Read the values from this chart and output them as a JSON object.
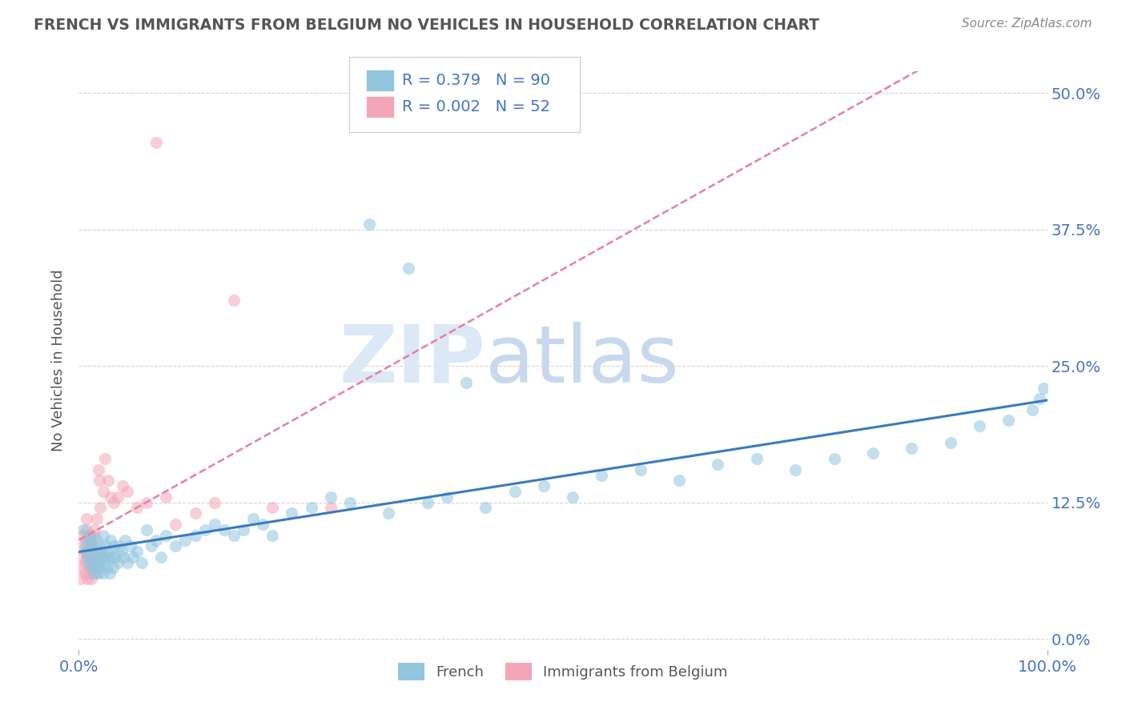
{
  "title": "FRENCH VS IMMIGRANTS FROM BELGIUM NO VEHICLES IN HOUSEHOLD CORRELATION CHART",
  "source": "Source: ZipAtlas.com",
  "ylabel": "No Vehicles in Household",
  "y_tick_values": [
    0.0,
    0.125,
    0.25,
    0.375,
    0.5
  ],
  "y_tick_labels": [
    "0.0%",
    "12.5%",
    "25.0%",
    "37.5%",
    "50.0%"
  ],
  "xlim": [
    0.0,
    1.0
  ],
  "ylim": [
    -0.01,
    0.52
  ],
  "french_R": 0.379,
  "french_N": 90,
  "belgium_R": 0.002,
  "belgium_N": 52,
  "french_color": "#92c5de",
  "belgium_color": "#f4a6b8",
  "french_line_color": "#3a7abf",
  "belgium_line_color": "#e87fa0",
  "grid_color": "#cccccc",
  "title_color": "#555555",
  "axis_label_color": "#555555",
  "tick_color": "#4472c4",
  "watermark_zip_color": "#dce8f5",
  "watermark_atlas_color": "#c8d9ee",
  "legend_text_color": "#4472c4",
  "french_x": [
    0.005,
    0.007,
    0.008,
    0.009,
    0.01,
    0.01,
    0.012,
    0.013,
    0.014,
    0.015,
    0.015,
    0.016,
    0.017,
    0.018,
    0.019,
    0.02,
    0.02,
    0.021,
    0.022,
    0.023,
    0.024,
    0.025,
    0.025,
    0.026,
    0.027,
    0.028,
    0.029,
    0.03,
    0.031,
    0.032,
    0.033,
    0.034,
    0.035,
    0.036,
    0.038,
    0.04,
    0.042,
    0.044,
    0.046,
    0.048,
    0.05,
    0.053,
    0.056,
    0.06,
    0.065,
    0.07,
    0.075,
    0.08,
    0.085,
    0.09,
    0.1,
    0.11,
    0.12,
    0.13,
    0.14,
    0.15,
    0.16,
    0.17,
    0.18,
    0.19,
    0.2,
    0.22,
    0.24,
    0.26,
    0.28,
    0.3,
    0.32,
    0.34,
    0.36,
    0.38,
    0.4,
    0.42,
    0.45,
    0.48,
    0.51,
    0.54,
    0.58,
    0.62,
    0.66,
    0.7,
    0.74,
    0.78,
    0.82,
    0.86,
    0.9,
    0.93,
    0.96,
    0.985,
    0.992,
    0.996
  ],
  "french_y": [
    0.1,
    0.085,
    0.08,
    0.075,
    0.07,
    0.09,
    0.095,
    0.065,
    0.085,
    0.06,
    0.075,
    0.08,
    0.07,
    0.065,
    0.09,
    0.06,
    0.07,
    0.085,
    0.065,
    0.08,
    0.075,
    0.06,
    0.095,
    0.075,
    0.07,
    0.085,
    0.065,
    0.075,
    0.08,
    0.06,
    0.09,
    0.075,
    0.065,
    0.085,
    0.075,
    0.07,
    0.085,
    0.08,
    0.075,
    0.09,
    0.07,
    0.085,
    0.075,
    0.08,
    0.07,
    0.1,
    0.085,
    0.09,
    0.075,
    0.095,
    0.085,
    0.09,
    0.095,
    0.1,
    0.105,
    0.1,
    0.095,
    0.1,
    0.11,
    0.105,
    0.095,
    0.115,
    0.12,
    0.13,
    0.125,
    0.38,
    0.115,
    0.34,
    0.125,
    0.13,
    0.235,
    0.12,
    0.135,
    0.14,
    0.13,
    0.15,
    0.155,
    0.145,
    0.16,
    0.165,
    0.155,
    0.165,
    0.17,
    0.175,
    0.18,
    0.195,
    0.2,
    0.21,
    0.22,
    0.23
  ],
  "belgium_x": [
    0.002,
    0.003,
    0.004,
    0.005,
    0.005,
    0.006,
    0.006,
    0.007,
    0.007,
    0.008,
    0.008,
    0.009,
    0.009,
    0.01,
    0.01,
    0.01,
    0.011,
    0.011,
    0.012,
    0.012,
    0.013,
    0.013,
    0.014,
    0.014,
    0.015,
    0.015,
    0.016,
    0.017,
    0.018,
    0.019,
    0.02,
    0.021,
    0.022,
    0.023,
    0.025,
    0.027,
    0.03,
    0.033,
    0.036,
    0.04,
    0.045,
    0.05,
    0.06,
    0.07,
    0.08,
    0.09,
    0.1,
    0.12,
    0.14,
    0.16,
    0.2,
    0.26
  ],
  "belgium_y": [
    0.055,
    0.065,
    0.075,
    0.085,
    0.095,
    0.06,
    0.07,
    0.08,
    0.09,
    0.1,
    0.11,
    0.055,
    0.075,
    0.065,
    0.085,
    0.095,
    0.06,
    0.075,
    0.07,
    0.085,
    0.055,
    0.09,
    0.065,
    0.08,
    0.095,
    0.07,
    0.1,
    0.06,
    0.08,
    0.11,
    0.155,
    0.145,
    0.12,
    0.075,
    0.135,
    0.165,
    0.145,
    0.13,
    0.125,
    0.13,
    0.14,
    0.135,
    0.12,
    0.125,
    0.455,
    0.13,
    0.105,
    0.115,
    0.125,
    0.31,
    0.12,
    0.12
  ]
}
